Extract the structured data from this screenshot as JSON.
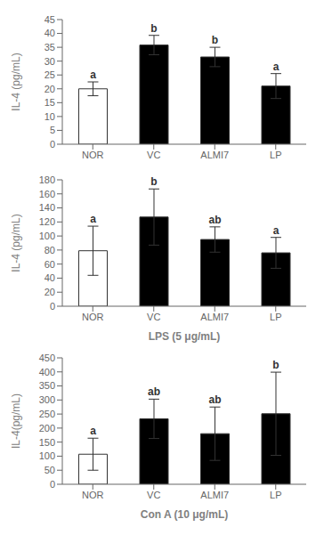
{
  "chart_data": [
    {
      "type": "bar",
      "categories": [
        "NOR",
        "VC",
        "ALMI7",
        "LP"
      ],
      "values": [
        20.0,
        35.8,
        31.5,
        21.0
      ],
      "errors": [
        2.5,
        3.5,
        3.5,
        4.5
      ],
      "colors": [
        "white",
        "black",
        "black",
        "black"
      ],
      "ylabel": "IL-4 (pg/mL)",
      "ylim": [
        0,
        45
      ],
      "yticks": [
        0,
        5,
        10,
        15,
        20,
        25,
        30,
        35,
        40,
        45
      ],
      "annotations": [
        "a",
        "b",
        "b",
        "a"
      ]
    },
    {
      "type": "bar",
      "categories": [
        "NOR",
        "VC",
        "ALMI7",
        "LP"
      ],
      "values": [
        79.0,
        127.0,
        95.0,
        76.0
      ],
      "errors": [
        35.0,
        40.0,
        18.0,
        22.0
      ],
      "colors": [
        "white",
        "black",
        "black",
        "black"
      ],
      "ylabel": "IL-4 (pg/mL)",
      "ylim": [
        0,
        180
      ],
      "yticks": [
        0,
        20,
        40,
        60,
        80,
        100,
        120,
        140,
        160,
        180
      ],
      "xlabel": "LPS (5 μg/mL)",
      "annotations": [
        "a",
        "b",
        "ab",
        "a"
      ]
    },
    {
      "type": "bar",
      "categories": [
        "NOR",
        "VC",
        "ALMI7",
        "LP"
      ],
      "values": [
        107.0,
        233.0,
        180.0,
        251.0
      ],
      "errors": [
        57.0,
        70.0,
        95.0,
        148.0
      ],
      "colors": [
        "white",
        "black",
        "black",
        "black"
      ],
      "ylabel": "IL-4(pg/mL)",
      "ylim": [
        0,
        450
      ],
      "yticks": [
        0,
        50,
        100,
        150,
        200,
        250,
        300,
        350,
        400,
        450
      ],
      "xlabel": "Con A (10 μg/mL)",
      "annotations": [
        "a",
        "ab",
        "ab",
        "b"
      ]
    }
  ]
}
